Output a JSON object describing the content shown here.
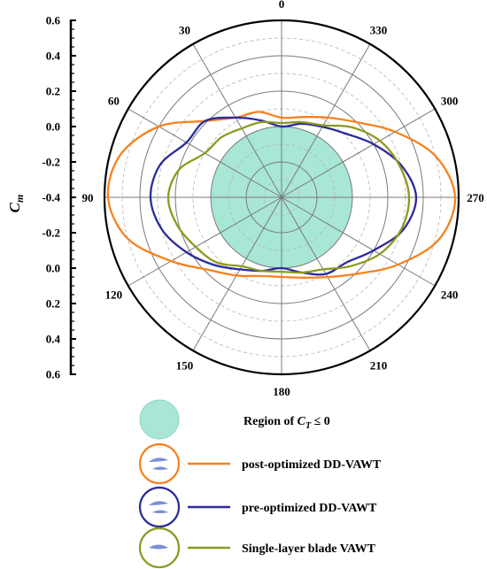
{
  "chart_data": {
    "type": "polar-line",
    "ylabel": "C",
    "ylabel_sub": "m",
    "radial_axis": {
      "labels": [
        "0.6",
        "0.4",
        "0.2",
        "0.0",
        "-0.2",
        "-0.4",
        "-0.2",
        "0.0",
        "0.2",
        "0.4",
        "0.6"
      ],
      "center_value": -0.4,
      "outer_value": 0.6,
      "grid": "solid every 0.2, dashed at odd 0.1"
    },
    "angle_axis": {
      "labels": [
        "0",
        "30",
        "60",
        "90",
        "120",
        "150",
        "180",
        "210",
        "240",
        "270",
        "300",
        "330"
      ],
      "angles_deg": [
        0,
        30,
        60,
        90,
        120,
        150,
        180,
        210,
        240,
        270,
        300,
        330
      ],
      "direction": "counter-clockwise from top"
    },
    "region": {
      "label_prefix": "Region of ",
      "label_var": "C",
      "label_sub": "T",
      "label_suffix": " ≤ 0",
      "radius_value": 0.0,
      "color": "#a8e6d6"
    },
    "series": [
      {
        "name": "post-optimized DD-VAWT",
        "color": "#f5821f",
        "theta": [
          0,
          15,
          30,
          45,
          60,
          75,
          90,
          105,
          120,
          135,
          150,
          165,
          180,
          195,
          210,
          225,
          240,
          255,
          270,
          285,
          300,
          315,
          330,
          345
        ],
        "values": [
          0.05,
          0.1,
          0.12,
          0.21,
          0.4,
          0.54,
          0.58,
          0.5,
          0.32,
          0.18,
          0.11,
          0.06,
          0.05,
          0.07,
          0.12,
          0.21,
          0.36,
          0.52,
          0.58,
          0.5,
          0.34,
          0.2,
          0.12,
          0.07
        ]
      },
      {
        "name": "pre-optimized DD-VAWT",
        "color": "#2b2b9c",
        "theta": [
          0,
          15,
          30,
          45,
          60,
          75,
          90,
          105,
          120,
          135,
          150,
          165,
          180,
          195,
          210,
          225,
          240,
          255,
          270,
          285,
          300,
          315,
          330,
          345
        ],
        "values": [
          0.0,
          0.05,
          0.12,
          0.21,
          0.22,
          0.31,
          0.34,
          0.3,
          0.22,
          0.14,
          0.07,
          0.03,
          0.0,
          0.04,
          0.1,
          0.12,
          0.2,
          0.31,
          0.36,
          0.3,
          0.2,
          0.11,
          0.06,
          0.03
        ]
      },
      {
        "name": "Single-layer blade VAWT",
        "color": "#8c9a1e",
        "theta": [
          0,
          15,
          30,
          45,
          60,
          75,
          90,
          105,
          120,
          135,
          150,
          165,
          180,
          195,
          210,
          225,
          240,
          255,
          270,
          285,
          300,
          315,
          330,
          345
        ],
        "values": [
          0.02,
          0.04,
          0.05,
          0.08,
          0.1,
          0.2,
          0.24,
          0.21,
          0.16,
          0.12,
          0.05,
          0.03,
          0.02,
          0.04,
          0.07,
          0.15,
          0.24,
          0.3,
          0.32,
          0.29,
          0.24,
          0.16,
          0.07,
          0.04
        ]
      }
    ]
  }
}
